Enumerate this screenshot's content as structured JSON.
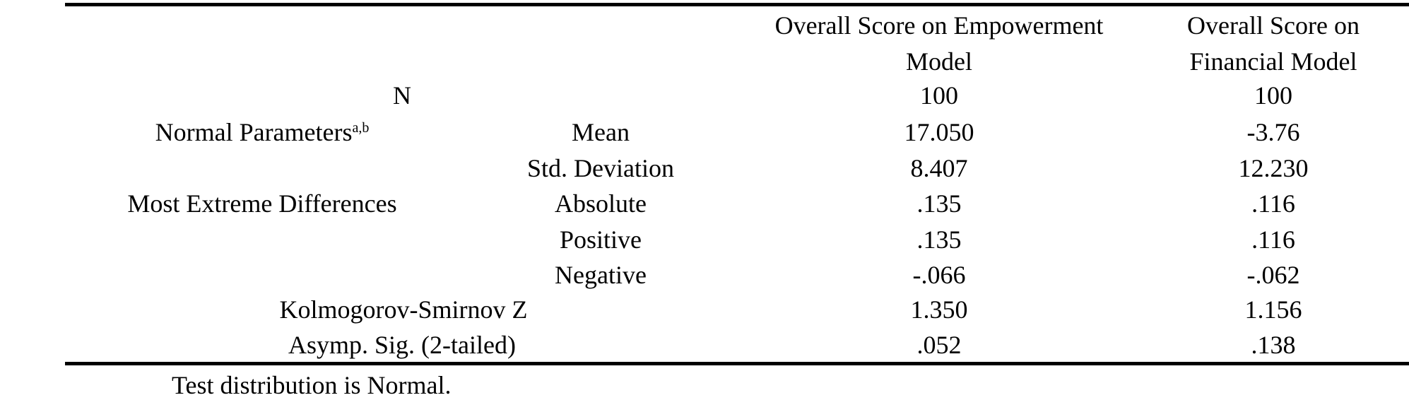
{
  "header": {
    "col1_line1": "Overall Score on Empowerment",
    "col1_line2": "Model",
    "col2_line1": "Overall Score on",
    "col2_line2": "Financial Model"
  },
  "rows": {
    "n": {
      "label": "N",
      "v1": "100",
      "v2": "100"
    },
    "normal_params": {
      "label": "Normal Parameters",
      "sup": "a,b"
    },
    "mean": {
      "label": "Mean",
      "v1": "17.050",
      "v2": "-3.76"
    },
    "sd": {
      "label": "Std. Deviation",
      "v1": "8.407",
      "v2": "12.230"
    },
    "med": {
      "label": "Most Extreme Differences"
    },
    "absolute": {
      "label": "Absolute",
      "v1": ".135",
      "v2": ".116"
    },
    "positive": {
      "label": "Positive",
      "v1": ".135",
      "v2": ".116"
    },
    "negative": {
      "label": "Negative",
      "v1": "-.066",
      "v2": "-.062"
    },
    "ksz": {
      "label": "Kolmogorov-Smirnov Z",
      "v1": "1.350",
      "v2": "1.156"
    },
    "sig": {
      "label": "Asymp. Sig. (2-tailed)",
      "v1": ".052",
      "v2": ".138"
    }
  },
  "footnote": "Test distribution is Normal."
}
